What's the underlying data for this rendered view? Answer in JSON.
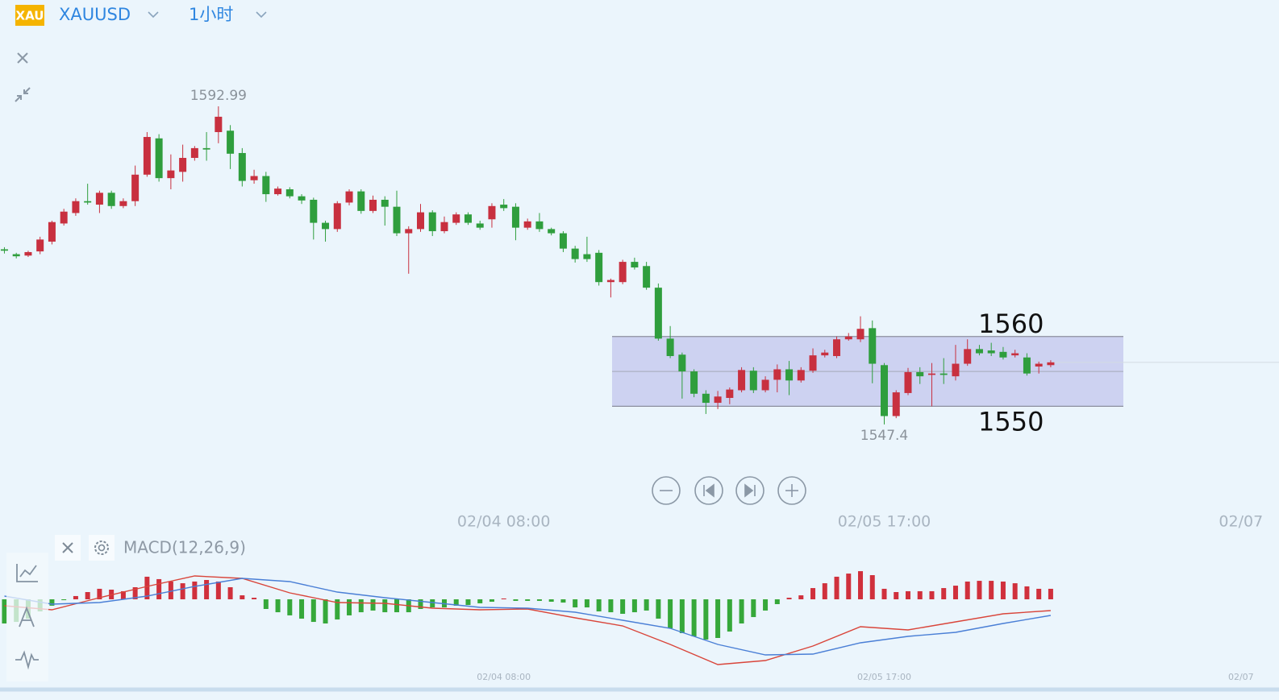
{
  "header": {
    "icon": "XAU",
    "symbol": "XAUUSD",
    "interval": "1小时"
  },
  "chart_data": [
    {
      "type": "candlestick",
      "up_color": "#c8303f",
      "down_color": "#2f9e3d",
      "xlim": [
        -0.37,
        107.2
      ],
      "ylim": [
        1540,
        1608
      ],
      "xticks": [
        {
          "value": 42,
          "label": "02/04 08:00"
        },
        {
          "value": 74,
          "label": "02/05 17:00"
        },
        {
          "value": 104,
          "label": "02/07"
        }
      ],
      "open": [
        1572.5,
        1571.8,
        1571.6,
        1572.2,
        1573.6,
        1576.2,
        1577.7,
        1579.4,
        1578.9,
        1580.6,
        1578.7,
        1579.4,
        1583.2,
        1588.4,
        1582.7,
        1583.6,
        1585.6,
        1587.0,
        1589.3,
        1589.5,
        1586.3,
        1582.4,
        1583.0,
        1580.4,
        1581.1,
        1580.1,
        1579.6,
        1576.3,
        1575.4,
        1579.2,
        1580.8,
        1578.0,
        1579.6,
        1578.6,
        1574.8,
        1575.4,
        1577.8,
        1575.1,
        1576.3,
        1577.5,
        1576.2,
        1576.8,
        1578.9,
        1578.6,
        1575.6,
        1576.5,
        1575.4,
        1574.8,
        1572.6,
        1571.8,
        1572.0,
        1567.8,
        1567.8,
        1570.7,
        1570.1,
        1567.0,
        1559.7,
        1557.4,
        1555.0,
        1551.8,
        1550.5,
        1551.2,
        1552.3,
        1555.1,
        1552.3,
        1553.8,
        1555.3,
        1553.7,
        1555.1,
        1557.3,
        1557.2,
        1559.6,
        1559.6,
        1561.2,
        1555.9,
        1548.6,
        1551.9,
        1554.9,
        1554.5,
        1554.7,
        1554.3,
        1556.1,
        1558.2,
        1558.0,
        1557.8,
        1557.3,
        1557.0,
        1555.7,
        1555.9
      ],
      "high": [
        1572.8,
        1572.0,
        1572.3,
        1574.3,
        1576.6,
        1578.3,
        1579.8,
        1581.9,
        1580.9,
        1580.9,
        1579.8,
        1584.5,
        1589.3,
        1589.0,
        1586.1,
        1587.5,
        1587.3,
        1589.3,
        1592.99,
        1590.3,
        1587.0,
        1583.9,
        1583.6,
        1581.5,
        1581.4,
        1580.4,
        1579.9,
        1576.6,
        1579.4,
        1581.1,
        1581.1,
        1580.2,
        1580.1,
        1580.9,
        1575.8,
        1579.0,
        1578.1,
        1577.2,
        1577.8,
        1577.8,
        1576.6,
        1579.1,
        1579.7,
        1579.1,
        1576.9,
        1577.7,
        1575.6,
        1575.1,
        1573.0,
        1574.3,
        1572.4,
        1568.3,
        1571.0,
        1571.3,
        1570.7,
        1567.6,
        1561.5,
        1557.7,
        1555.3,
        1552.3,
        1552.2,
        1552.7,
        1555.6,
        1555.6,
        1554.3,
        1556.0,
        1556.5,
        1555.6,
        1558.3,
        1558.1,
        1560.0,
        1560.5,
        1562.9,
        1562.3,
        1556.2,
        1552.3,
        1555.5,
        1555.6,
        1556.2,
        1556.9,
        1558.8,
        1559.6,
        1558.8,
        1559.1,
        1558.5,
        1558.1,
        1557.6,
        1556.4,
        1556.6
      ],
      "low": [
        1571.9,
        1571.2,
        1571.4,
        1571.8,
        1573.2,
        1575.9,
        1577.3,
        1578.9,
        1577.7,
        1578.3,
        1578.4,
        1578.7,
        1582.9,
        1582.2,
        1581.1,
        1582.2,
        1585.2,
        1585.2,
        1587.7,
        1584.0,
        1581.5,
        1581.9,
        1579.3,
        1580.2,
        1579.8,
        1579.0,
        1573.9,
        1573.6,
        1575.0,
        1578.8,
        1577.6,
        1577.7,
        1575.9,
        1574.4,
        1569.0,
        1575.0,
        1574.4,
        1574.8,
        1576.0,
        1576.0,
        1575.3,
        1575.6,
        1578.0,
        1573.8,
        1575.3,
        1575.0,
        1574.5,
        1572.1,
        1570.6,
        1570.7,
        1567.3,
        1565.6,
        1567.5,
        1569.6,
        1566.7,
        1559.4,
        1556.9,
        1551.1,
        1551.3,
        1548.9,
        1549.6,
        1550.3,
        1552.0,
        1551.9,
        1552.0,
        1552.0,
        1551.6,
        1553.4,
        1554.8,
        1557.0,
        1556.9,
        1559.4,
        1559.2,
        1553.3,
        1547.4,
        1548.3,
        1551.6,
        1553.2,
        1550.0,
        1553.2,
        1553.7,
        1555.8,
        1557.3,
        1557.2,
        1556.7,
        1557.0,
        1554.4,
        1554.7,
        1555.6
      ],
      "close": [
        1572.3,
        1571.5,
        1572.1,
        1573.9,
        1576.4,
        1577.9,
        1579.4,
        1579.2,
        1580.6,
        1578.7,
        1579.4,
        1583.2,
        1588.6,
        1582.7,
        1583.8,
        1585.6,
        1587.0,
        1586.8,
        1591.5,
        1586.2,
        1582.3,
        1583.0,
        1580.4,
        1581.2,
        1580.1,
        1579.5,
        1576.3,
        1575.4,
        1579.1,
        1580.8,
        1578.0,
        1579.6,
        1578.6,
        1574.8,
        1575.4,
        1577.8,
        1575.1,
        1576.4,
        1577.5,
        1576.3,
        1575.6,
        1578.7,
        1578.4,
        1575.6,
        1576.5,
        1575.4,
        1574.8,
        1572.6,
        1571.1,
        1571.1,
        1567.8,
        1568.1,
        1570.7,
        1569.9,
        1567.0,
        1559.7,
        1557.2,
        1555.0,
        1551.8,
        1550.5,
        1551.4,
        1552.4,
        1555.2,
        1552.3,
        1553.8,
        1555.3,
        1553.7,
        1555.2,
        1557.3,
        1557.7,
        1559.6,
        1560.0,
        1561.1,
        1556.1,
        1548.6,
        1552.0,
        1554.9,
        1554.3,
        1554.7,
        1554.5,
        1556.1,
        1558.2,
        1557.6,
        1557.6,
        1557.0,
        1557.6,
        1554.7,
        1556.1,
        1556.3
      ],
      "zone": {
        "low": 1550,
        "high": 1560,
        "color": "#c5c9ee"
      }
    },
    {
      "type": "macd",
      "title": "MACD(12,26,9)",
      "xlim": [
        -0.37,
        107.2
      ],
      "ylim": [
        -6,
        3
      ],
      "xticks": [
        {
          "value": 42,
          "label": "02/04 08:00"
        },
        {
          "value": 74,
          "label": "02/05 17:00"
        },
        {
          "value": 104,
          "label": "02/07"
        }
      ],
      "up_color": "#d0303c",
      "down_color": "#36a83a",
      "histogram": [
        -2.0,
        -1.87,
        -1.6,
        -1.0,
        -0.53,
        -0.07,
        0.27,
        0.6,
        0.87,
        0.8,
        0.67,
        1.0,
        1.87,
        1.67,
        1.47,
        1.33,
        1.47,
        1.6,
        1.47,
        1.0,
        0.33,
        0.13,
        -0.8,
        -1.07,
        -1.33,
        -1.6,
        -1.87,
        -2.0,
        -1.67,
        -1.33,
        -1.07,
        -0.93,
        -1.07,
        -1.07,
        -1.07,
        -0.8,
        -0.67,
        -0.67,
        -0.53,
        -0.47,
        -0.33,
        -0.2,
        0.07,
        -0.13,
        -0.13,
        -0.13,
        -0.2,
        -0.27,
        -0.67,
        -0.67,
        -1.0,
        -1.07,
        -1.2,
        -1.07,
        -0.93,
        -1.6,
        -2.4,
        -2.8,
        -3.07,
        -3.33,
        -3.2,
        -2.67,
        -2.0,
        -1.47,
        -0.93,
        -0.4,
        0.13,
        0.33,
        0.93,
        1.33,
        1.87,
        2.13,
        2.33,
        2.0,
        0.87,
        0.6,
        0.67,
        0.67,
        0.67,
        0.93,
        1.13,
        1.47,
        1.53,
        1.53,
        1.47,
        1.33,
        1.07,
        0.87,
        0.87
      ],
      "series": [
        {
          "color": "#d9453a",
          "x": [
            0,
            4,
            8,
            12,
            16,
            20,
            24,
            28,
            32,
            36,
            40,
            44,
            48,
            52,
            56,
            60,
            64,
            68,
            72,
            76,
            80,
            84,
            88
          ],
          "values": [
            -0.53,
            -0.87,
            0.13,
            1.07,
            1.93,
            1.73,
            0.53,
            -0.27,
            -0.33,
            -0.73,
            -0.87,
            -0.8,
            -1.53,
            -2.2,
            -3.73,
            -5.4,
            -5.07,
            -3.87,
            -2.27,
            -2.53,
            -1.87,
            -1.2,
            -0.93
          ]
        },
        {
          "color": "#4a7fd6",
          "x": [
            0,
            4,
            8,
            12,
            16,
            20,
            24,
            28,
            32,
            36,
            40,
            44,
            48,
            52,
            56,
            60,
            64,
            68,
            72,
            76,
            80,
            84,
            88
          ],
          "values": [
            0.27,
            -0.4,
            -0.27,
            0.27,
            1.07,
            1.73,
            1.47,
            0.6,
            0.13,
            -0.27,
            -0.67,
            -0.73,
            -1.07,
            -1.73,
            -2.4,
            -3.73,
            -4.6,
            -4.53,
            -3.6,
            -3.07,
            -2.73,
            -2.0,
            -1.33
          ]
        }
      ]
    }
  ]
}
